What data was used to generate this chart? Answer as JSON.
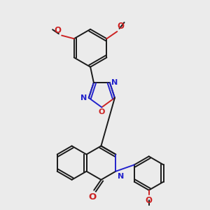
{
  "bg_color": "#ebebeb",
  "bond_color": "#1a1a1a",
  "n_color": "#2222cc",
  "o_color": "#cc2222",
  "font_size": 7.5,
  "line_width": 1.4,
  "xlim": [
    -2.2,
    2.8
  ],
  "ylim": [
    -2.2,
    4.2
  ]
}
